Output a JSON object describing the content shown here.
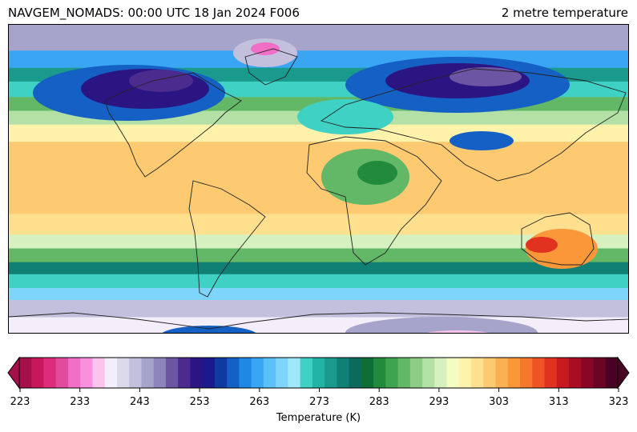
{
  "title": {
    "left": "NAVGEM_NOMADS: 00:00 UTC 18 Jan 2024 F006",
    "right": "2 metre temperature"
  },
  "colorbar": {
    "label": "Temperature (K)",
    "ticks": [
      "223",
      "233",
      "243",
      "253",
      "263",
      "273",
      "283",
      "293",
      "303",
      "313",
      "323"
    ],
    "min": 223,
    "max": 323,
    "extend": "both",
    "colors": [
      "#a50f4a",
      "#c71859",
      "#dd2c7c",
      "#e24a9c",
      "#f06ec6",
      "#f98fdd",
      "#fcc3ec",
      "#f3eefa",
      "#dcdaea",
      "#c2c0dc",
      "#a7a4cb",
      "#8d86bd",
      "#6c55a3",
      "#4b2c8e",
      "#2b1582",
      "#1a1a8c",
      "#0f3aa0",
      "#1560c4",
      "#1e88e5",
      "#3aa6f3",
      "#5bc0f8",
      "#7dd5fb",
      "#9fe8fc",
      "#3fd1c4",
      "#22b5a6",
      "#1a9a8c",
      "#107f74",
      "#0b6b5a",
      "#0f6e35",
      "#228a3d",
      "#3fa24f",
      "#62b867",
      "#8dcc85",
      "#b3e0a4",
      "#d6f0bf",
      "#f5fcc0",
      "#fff2aa",
      "#ffe08e",
      "#fdca72",
      "#fbb053",
      "#f99739",
      "#f6782c",
      "#ef5424",
      "#e0321f",
      "#c61a20",
      "#a80d24",
      "#8a0626",
      "#6b0525",
      "#4a0224"
    ]
  },
  "map": {
    "projection": "plate-carree",
    "variable": "2 metre temperature",
    "lat_bands": [
      {
        "lat_top": 90,
        "lat_bottom": 75,
        "color": "#a7a4cb"
      },
      {
        "lat_top": 75,
        "lat_bottom": 65,
        "color": "#3aa6f3"
      },
      {
        "lat_top": 65,
        "lat_bottom": 57,
        "color": "#1a9a8c"
      },
      {
        "lat_top": 57,
        "lat_bottom": 48,
        "color": "#3fd1c4"
      },
      {
        "lat_top": 48,
        "lat_bottom": 40,
        "color": "#62b867"
      },
      {
        "lat_top": 40,
        "lat_bottom": 32,
        "color": "#b3e0a4"
      },
      {
        "lat_top": 32,
        "lat_bottom": 22,
        "color": "#fff2aa"
      },
      {
        "lat_top": 22,
        "lat_bottom": -20,
        "color": "#fdca72"
      },
      {
        "lat_top": -20,
        "lat_bottom": -32,
        "color": "#ffe08e"
      },
      {
        "lat_top": -32,
        "lat_bottom": -40,
        "color": "#d6f0bf"
      },
      {
        "lat_top": -40,
        "lat_bottom": -48,
        "color": "#62b867"
      },
      {
        "lat_top": -48,
        "lat_bottom": -55,
        "color": "#107f74"
      },
      {
        "lat_top": -55,
        "lat_bottom": -63,
        "color": "#3fd1c4"
      },
      {
        "lat_top": -63,
        "lat_bottom": -70,
        "color": "#7dd5fb"
      },
      {
        "lat_top": -70,
        "lat_bottom": -80,
        "color": "#c2c0dc"
      },
      {
        "lat_top": -80,
        "lat_bottom": -90,
        "color": "#f3eefa"
      }
    ]
  }
}
